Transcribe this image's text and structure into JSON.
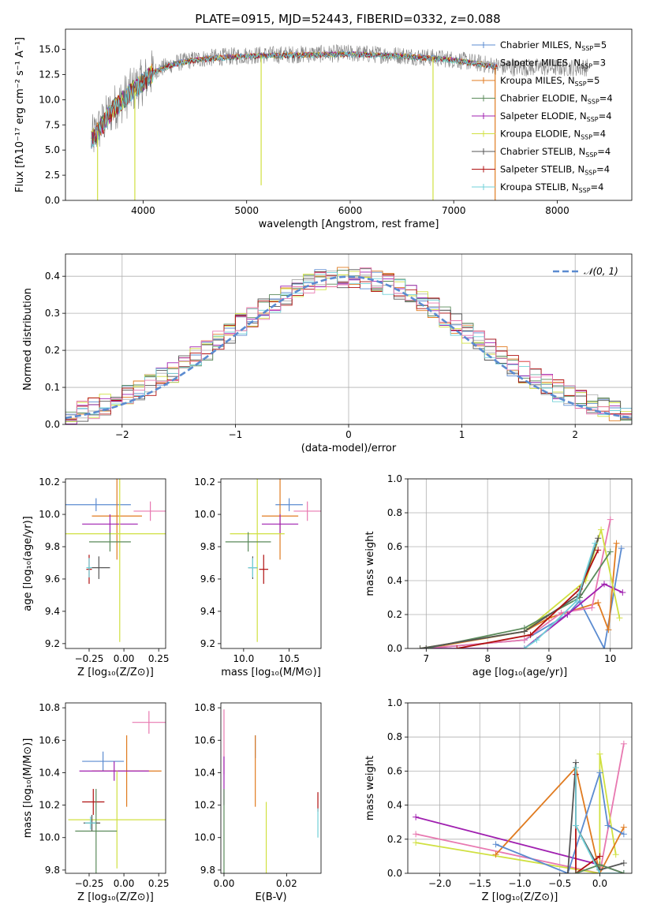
{
  "figure": {
    "title": "PLATE=0915, MJD=52443, FIBERID=0332, z=0.088",
    "colors": {
      "Chabrier MILES": "#5b8bd0",
      "Salpeter MILES": "#b0b0b0",
      "Kroupa MILES": "#e07b20",
      "Chabrier ELODIE": "#5a8a5a",
      "Salpeter ELODIE": "#a020b0",
      "Kroupa ELODIE": "#d0e040",
      "Chabrier STELIB": "#555555",
      "Salpeter STELIB": "#b01010",
      "Kroupa STELIB": "#70d0d8",
      "pink": "#e878b0",
      "gray_spectrum": "#808080"
    }
  },
  "chart_data": [
    {
      "id": "spectrum",
      "type": "line",
      "xlabel": "wavelength [Angstrom, rest frame]",
      "ylabel": "Flux [fλ10⁻¹⁷ erg cm⁻² s⁻¹ A⁻¹]",
      "xlim": [
        3250,
        8720
      ],
      "ylim": [
        0,
        17
      ],
      "xticks": [
        4000,
        5000,
        6000,
        7000,
        8000
      ],
      "yticks": [
        0.0,
        2.5,
        5.0,
        7.5,
        10.0,
        12.5,
        15.0
      ],
      "ytick_labels": [
        "0.0",
        "2.5",
        "5.0",
        "7.5",
        "10.0",
        "12.5",
        "15.0"
      ],
      "legend_position": "right",
      "legend": [
        {
          "name": "Chabrier MILES",
          "nssp": "5"
        },
        {
          "name": "Salpeter MILES",
          "nssp": "3"
        },
        {
          "name": "Kroupa MILES",
          "nssp": "5"
        },
        {
          "name": "Chabrier ELODIE",
          "nssp": "4"
        },
        {
          "name": "Salpeter ELODIE",
          "nssp": "4"
        },
        {
          "name": "Kroupa ELODIE",
          "nssp": "4"
        },
        {
          "name": "Chabrier STELIB",
          "nssp": "4"
        },
        {
          "name": "Salpeter STELIB",
          "nssp": "4"
        },
        {
          "name": "Kroupa STELIB",
          "nssp": "4"
        }
      ],
      "continuum": {
        "x": [
          3500,
          3700,
          3900,
          4000,
          4100,
          4300,
          4500,
          4700,
          5000,
          5500,
          6000,
          6500,
          7000,
          7500
        ],
        "y": [
          6.0,
          9.0,
          11.0,
          11.8,
          12.8,
          13.6,
          14.0,
          14.2,
          14.4,
          14.5,
          14.6,
          14.4,
          14.0,
          13.2
        ]
      },
      "drops": [
        {
          "x": 3560,
          "y": 0.0
        },
        {
          "x": 3920,
          "y": 0.0
        },
        {
          "x": 5140,
          "y": 1.5
        },
        {
          "x": 6800,
          "y": 0.0
        },
        {
          "x": 7400,
          "y": 0.0
        }
      ]
    },
    {
      "id": "residual_hist",
      "type": "step",
      "xlabel": "(data-model)/error",
      "ylabel": "Normed distribution",
      "xlim": [
        -2.5,
        2.5
      ],
      "ylim": [
        0,
        0.46
      ],
      "xticks": [
        -2,
        -1,
        0,
        1,
        2
      ],
      "xtick_labels": [
        "−2",
        "−1",
        "0",
        "1",
        "2"
      ],
      "yticks": [
        0.0,
        0.1,
        0.2,
        0.3,
        0.4
      ],
      "ytick_labels": [
        "0.0",
        "0.1",
        "0.2",
        "0.3",
        "0.4"
      ],
      "bin_width": 0.1,
      "grid": true,
      "legend_position": "top-right",
      "legend": "𝒩(0, 1)",
      "gaussian": {
        "mean": 0,
        "sigma": 1,
        "style": "dashed"
      }
    },
    {
      "id": "age_vs_Z",
      "type": "errorbar",
      "xlabel": "Z [log₁₀(Z/Z⊙)]",
      "ylabel": "age  [log₁₀(age/yr)]",
      "xlim": [
        -0.42,
        0.3
      ],
      "ylim": [
        9.17,
        10.22
      ],
      "xticks": [
        -0.25,
        0.0,
        0.25
      ],
      "xtick_labels": [
        "−0.25",
        "0.00",
        "0.25"
      ],
      "yticks": [
        9.2,
        9.4,
        9.6,
        9.8,
        10.0,
        10.2
      ],
      "ytick_labels": [
        "9.2",
        "9.4",
        "9.6",
        "9.8",
        "10.0",
        "10.2"
      ],
      "points": [
        {
          "series": "Chabrier MILES",
          "x": -0.2,
          "xerr": 0.25,
          "y": 10.06,
          "yerr": 0.04
        },
        {
          "series": "Kroupa MILES",
          "x": -0.05,
          "xerr": 0.18,
          "y": 9.99,
          "yerr": 0.27
        },
        {
          "series": "pink",
          "x": 0.19,
          "xerr": 0.12,
          "y": 10.02,
          "yerr": 0.06
        },
        {
          "series": "Salpeter ELODIE",
          "x": -0.1,
          "xerr": 0.2,
          "y": 9.94,
          "yerr": 0.06
        },
        {
          "series": "Kroupa ELODIE",
          "x": -0.03,
          "xerr": 0.4,
          "y": 9.88,
          "yerr": 0.67
        },
        {
          "series": "Chabrier ELODIE",
          "x": -0.1,
          "xerr": 0.15,
          "y": 9.83,
          "yerr": 0.06
        },
        {
          "series": "Chabrier STELIB",
          "x": -0.18,
          "xerr": 0.08,
          "y": 9.67,
          "yerr": 0.07
        },
        {
          "series": "Salpeter STELIB",
          "x": -0.25,
          "xerr": 0.02,
          "y": 9.66,
          "yerr": 0.09
        },
        {
          "series": "Kroupa STELIB",
          "x": -0.25,
          "xerr": 0.02,
          "y": 9.67,
          "yerr": 0.06
        }
      ]
    },
    {
      "id": "age_vs_mass",
      "type": "errorbar",
      "xlabel": "mass [log₁₀(M/M⊙)]",
      "ylabel": "",
      "xlim": [
        9.75,
        10.85
      ],
      "ylim": [
        9.17,
        10.22
      ],
      "xticks": [
        10.0,
        10.5
      ],
      "xtick_labels": [
        "10.0",
        "10.5"
      ],
      "yticks": [
        9.2,
        9.4,
        9.6,
        9.8,
        10.0,
        10.2
      ],
      "ytick_labels": [
        "9.2",
        "9.4",
        "9.6",
        "9.8",
        "10.0",
        "10.2"
      ],
      "points": [
        {
          "series": "Chabrier MILES",
          "x": 10.5,
          "xerr": 0.15,
          "y": 10.06,
          "yerr": 0.04
        },
        {
          "series": "Kroupa MILES",
          "x": 10.4,
          "xerr": 0.2,
          "y": 9.99,
          "yerr": 0.27
        },
        {
          "series": "pink",
          "x": 10.7,
          "xerr": 0.15,
          "y": 10.02,
          "yerr": 0.06
        },
        {
          "series": "Salpeter ELODIE",
          "x": 10.4,
          "xerr": 0.2,
          "y": 9.94,
          "yerr": 0.06
        },
        {
          "series": "Kroupa ELODIE",
          "x": 10.15,
          "xerr": 0.3,
          "y": 9.88,
          "yerr": 0.67
        },
        {
          "series": "Chabrier ELODIE",
          "x": 10.05,
          "xerr": 0.25,
          "y": 9.83,
          "yerr": 0.06
        },
        {
          "series": "Chabrier STELIB",
          "x": 10.1,
          "xerr": 0.05,
          "y": 9.67,
          "yerr": 0.07
        },
        {
          "series": "Salpeter STELIB",
          "x": 10.22,
          "xerr": 0.05,
          "y": 9.66,
          "yerr": 0.09
        },
        {
          "series": "Kroupa STELIB",
          "x": 10.1,
          "xerr": 0.05,
          "y": 9.67,
          "yerr": 0.06
        }
      ]
    },
    {
      "id": "weight_vs_age",
      "type": "line",
      "xlabel": "age  [log₁₀(age/yr)]",
      "ylabel": "mass weight",
      "xlim": [
        6.7,
        10.35
      ],
      "ylim": [
        0,
        1.0
      ],
      "xticks": [
        7,
        8,
        9,
        10
      ],
      "xtick_labels": [
        "7",
        "8",
        "9",
        "10"
      ],
      "yticks": [
        0.0,
        0.2,
        0.4,
        0.6,
        0.8,
        1.0
      ],
      "ytick_labels": [
        "0.0",
        "0.2",
        "0.4",
        "0.6",
        "0.8",
        "1.0"
      ],
      "grid": true,
      "series": [
        {
          "name": "Chabrier MILES",
          "x": [
            7.0,
            8.6,
            9.3,
            9.5,
            9.9,
            10.18
          ],
          "y": [
            0.0,
            0.05,
            0.2,
            0.28,
            0.0,
            0.59
          ]
        },
        {
          "name": "Kroupa MILES",
          "x": [
            7.0,
            8.6,
            9.0,
            9.8,
            9.97,
            10.1
          ],
          "y": [
            0.0,
            0.1,
            0.18,
            0.27,
            0.11,
            0.62
          ]
        },
        {
          "name": "pink",
          "x": [
            7.0,
            8.6,
            9.2,
            9.7,
            10.0
          ],
          "y": [
            0.0,
            0.05,
            0.21,
            0.24,
            0.76
          ]
        },
        {
          "name": "Salpeter ELODIE",
          "x": [
            7.0,
            8.6,
            9.3,
            9.9,
            10.2
          ],
          "y": [
            0.0,
            0.0,
            0.2,
            0.38,
            0.33
          ]
        },
        {
          "name": "Kroupa ELODIE",
          "x": [
            6.9,
            8.6,
            9.6,
            9.85,
            10.15
          ],
          "y": [
            0.0,
            0.1,
            0.4,
            0.7,
            0.18
          ]
        },
        {
          "name": "Chabrier ELODIE",
          "x": [
            7.0,
            8.6,
            9.5,
            10.0
          ],
          "y": [
            0.0,
            0.12,
            0.3,
            0.57
          ]
        },
        {
          "name": "Chabrier STELIB",
          "x": [
            6.9,
            8.6,
            9.5,
            9.8
          ],
          "y": [
            0.0,
            0.1,
            0.32,
            0.65
          ]
        },
        {
          "name": "Salpeter STELIB",
          "x": [
            7.5,
            8.7,
            9.5,
            9.8
          ],
          "y": [
            0.0,
            0.08,
            0.35,
            0.58
          ]
        },
        {
          "name": "Kroupa STELIB",
          "x": [
            8.6,
            8.8,
            9.45,
            9.75
          ],
          "y": [
            0.0,
            0.05,
            0.28,
            0.62
          ]
        }
      ]
    },
    {
      "id": "mass_vs_Z",
      "type": "errorbar",
      "xlabel": "Z [log₁₀(Z/Z⊙)]",
      "ylabel": "mass [log₁₀(M/M⊙)]",
      "xlim": [
        -0.42,
        0.3
      ],
      "ylim": [
        9.78,
        10.83
      ],
      "xticks": [
        -0.25,
        0.0,
        0.25
      ],
      "xtick_labels": [
        "−0.25",
        "0.00",
        "0.25"
      ],
      "yticks": [
        9.8,
        10.0,
        10.2,
        10.4,
        10.6,
        10.8
      ],
      "ytick_labels": [
        "9.8",
        "10.0",
        "10.2",
        "10.4",
        "10.6",
        "10.8"
      ],
      "points": [
        {
          "series": "pink",
          "x": 0.18,
          "xerr": 0.12,
          "y": 10.71,
          "yerr": 0.07
        },
        {
          "series": "Chabrier MILES",
          "x": -0.15,
          "xerr": 0.15,
          "y": 10.47,
          "yerr": 0.06
        },
        {
          "series": "Kroupa MILES",
          "x": 0.02,
          "xerr": 0.25,
          "y": 10.41,
          "yerr": 0.22
        },
        {
          "series": "Salpeter ELODIE",
          "x": -0.07,
          "xerr": 0.25,
          "y": 10.41,
          "yerr": 0.06
        },
        {
          "series": "Salpeter STELIB",
          "x": -0.22,
          "xerr": 0.08,
          "y": 10.22,
          "yerr": 0.08
        },
        {
          "series": "Kroupa ELODIE",
          "x": -0.05,
          "xerr": 0.35,
          "y": 10.11,
          "yerr": 0.3
        },
        {
          "series": "Chabrier ELODIE",
          "x": -0.2,
          "xerr": 0.15,
          "y": 10.04,
          "yerr": 0.26
        },
        {
          "series": "Chabrier STELIB",
          "x": -0.23,
          "xerr": 0.06,
          "y": 10.09,
          "yerr": 0.05
        },
        {
          "series": "Kroupa STELIB",
          "x": -0.24,
          "xerr": 0.04,
          "y": 10.09,
          "yerr": 0.04
        }
      ]
    },
    {
      "id": "mass_vs_ebv",
      "type": "errorbar",
      "xlabel": "E(B-V)",
      "ylabel": "",
      "xlim": [
        -0.001,
        0.031
      ],
      "ylim": [
        9.78,
        10.83
      ],
      "xticks": [
        0.0,
        0.02
      ],
      "xtick_labels": [
        "0.00",
        "0.02"
      ],
      "yticks": [
        9.8,
        10.0,
        10.2,
        10.4,
        10.6,
        10.8
      ],
      "ytick_labels": [
        "9.8",
        "10.0",
        "10.2",
        "10.4",
        "10.6",
        "10.8"
      ],
      "points": [
        {
          "series": "pink",
          "x": 0.0,
          "xerr": 0.0,
          "y": 10.59,
          "yerr": 0.2
        },
        {
          "series": "Salpeter ELODIE",
          "x": 0.0,
          "xerr": 0.0,
          "y": 10.35,
          "yerr": 0.15
        },
        {
          "series": "Chabrier ELODIE",
          "x": 0.0,
          "xerr": 0.0,
          "y": 10.04,
          "yerr": 0.26
        },
        {
          "series": "Chabrier MILES",
          "x": 0.01,
          "xerr": 0.0,
          "y": 10.56,
          "yerr": 0.07
        },
        {
          "series": "Kroupa MILES",
          "x": 0.01,
          "xerr": 0.0,
          "y": 10.41,
          "yerr": 0.22
        },
        {
          "series": "Kroupa ELODIE",
          "x": 0.0135,
          "xerr": 0.0,
          "y": 9.98,
          "yerr": 0.24
        },
        {
          "series": "Salpeter STELIB",
          "x": 0.03,
          "xerr": 0.0,
          "y": 10.22,
          "yerr": 0.06
        },
        {
          "series": "Kroupa STELIB",
          "x": 0.03,
          "xerr": 0.0,
          "y": 10.09,
          "yerr": 0.09
        }
      ]
    },
    {
      "id": "weight_vs_Z",
      "type": "line",
      "xlabel": "Z [log₁₀(Z/Z⊙)]",
      "ylabel": "mass weight",
      "xlim": [
        -2.4,
        0.4
      ],
      "ylim": [
        0,
        1.0
      ],
      "xticks": [
        -2.0,
        -1.5,
        -1.0,
        -0.5,
        0.0
      ],
      "xtick_labels": [
        "−2.0",
        "−1.5",
        "−1.0",
        "−0.5",
        "0.0"
      ],
      "yticks": [
        0.0,
        0.2,
        0.4,
        0.6,
        0.8,
        1.0
      ],
      "ytick_labels": [
        "0.0",
        "0.2",
        "0.4",
        "0.6",
        "0.8",
        "1.0"
      ],
      "grid": true,
      "series": [
        {
          "name": "Salpeter ELODIE",
          "x": [
            -2.3,
            0.0,
            0.3
          ],
          "y": [
            0.33,
            0.05,
            0.0
          ]
        },
        {
          "name": "pink",
          "x": [
            -2.3,
            0.0,
            0.3
          ],
          "y": [
            0.23,
            0.0,
            0.76
          ]
        },
        {
          "name": "Kroupa ELODIE",
          "x": [
            -2.3,
            0.0,
            0.0,
            0.2
          ],
          "y": [
            0.18,
            0.0,
            0.7,
            0.11
          ]
        },
        {
          "name": "Kroupa MILES",
          "x": [
            -1.3,
            -0.3,
            0.0,
            0.3
          ],
          "y": [
            0.11,
            0.62,
            0.0,
            0.27
          ]
        },
        {
          "name": "Chabrier MILES",
          "x": [
            -1.3,
            -0.4,
            0.0,
            0.1,
            0.3
          ],
          "y": [
            0.17,
            0.0,
            0.59,
            0.28,
            0.23
          ]
        },
        {
          "name": "Chabrier STELIB",
          "x": [
            -0.4,
            -0.3,
            -0.3,
            0.0,
            0.3
          ],
          "y": [
            0.0,
            0.65,
            0.28,
            0.02,
            0.06
          ]
        },
        {
          "name": "Salpeter STELIB",
          "x": [
            -0.3,
            -0.3,
            0.0
          ],
          "y": [
            0.58,
            0.0,
            0.1
          ]
        },
        {
          "name": "Kroupa STELIB",
          "x": [
            -0.3,
            -0.3,
            0.0,
            0.3
          ],
          "y": [
            0.62,
            0.28,
            0.0,
            0.0
          ]
        },
        {
          "name": "Chabrier ELODIE",
          "x": [
            -0.3,
            0.0,
            0.3
          ],
          "y": [
            0.0,
            0.05,
            0.0
          ]
        }
      ]
    }
  ]
}
